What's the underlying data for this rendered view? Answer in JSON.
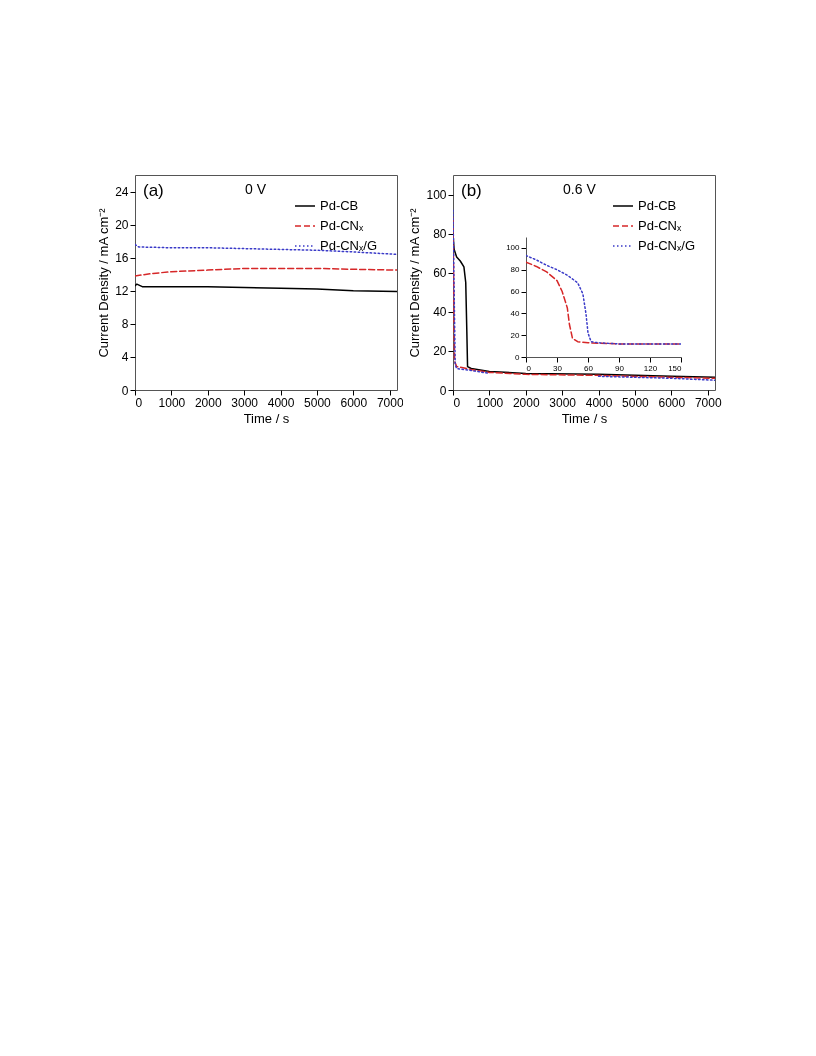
{
  "chart_data": [
    {
      "type": "line",
      "xlabel": "Time / s",
      "ylabel": "Current Density / mA cm⁻²",
      "annotations": [
        "(a)",
        "0 V"
      ],
      "xlim": [
        0,
        7200
      ],
      "xticks": [
        0,
        1000,
        2000,
        3000,
        4000,
        5000,
        6000,
        7000
      ],
      "ylim": [
        0,
        26
      ],
      "yticks": [
        0,
        4,
        8,
        12,
        16,
        20,
        24
      ],
      "legend": "top right",
      "grid": false,
      "series": [
        {
          "name": "Pd-CB",
          "color": "#000000",
          "line_style": "solid",
          "x": [
            0,
            50,
            200,
            1000,
            2000,
            3000,
            4000,
            5000,
            6000,
            7200
          ],
          "values": [
            12.6,
            12.8,
            12.5,
            12.5,
            12.5,
            12.4,
            12.3,
            12.2,
            12.0,
            11.9
          ]
        },
        {
          "name": "Pd-CNₓ",
          "color": "#d62728",
          "line_style": "dashed",
          "x": [
            0,
            500,
            1000,
            2000,
            3000,
            4000,
            5000,
            6000,
            7200
          ],
          "values": [
            13.8,
            14.1,
            14.3,
            14.5,
            14.7,
            14.7,
            14.7,
            14.6,
            14.5
          ]
        },
        {
          "name": "Pd-CNₓ/G",
          "color": "#3a3ac8",
          "line_style": "dotted",
          "x": [
            0,
            100,
            1000,
            2000,
            3000,
            4000,
            5000,
            6000,
            7200
          ],
          "values": [
            17.6,
            17.3,
            17.2,
            17.2,
            17.1,
            17.0,
            16.9,
            16.7,
            16.4
          ]
        }
      ]
    },
    {
      "type": "line",
      "xlabel": "Time / s",
      "ylabel": "Current Density / mA cm⁻²",
      "annotations": [
        "(b)",
        "0.6 V"
      ],
      "xlim": [
        0,
        7200
      ],
      "xticks": [
        0,
        1000,
        2000,
        3000,
        4000,
        5000,
        6000,
        7000
      ],
      "ylim": [
        0,
        110
      ],
      "yticks": [
        0,
        20,
        40,
        60,
        80,
        100
      ],
      "legend": "top right",
      "grid": false,
      "series": [
        {
          "name": "Pd-CB",
          "color": "#000000",
          "line_style": "solid",
          "x": [
            0,
            30,
            100,
            200,
            300,
            350,
            380,
            400,
            500,
            1000,
            2000,
            4000,
            6000,
            7200
          ],
          "values": [
            80,
            72,
            68,
            66,
            63,
            55,
            30,
            12,
            11,
            9.5,
            8.5,
            8,
            7,
            6.5
          ]
        },
        {
          "name": "Pd-CNₓ",
          "color": "#d62728",
          "line_style": "dashed",
          "x": [
            0,
            40,
            100,
            500,
            1000,
            2000,
            4000,
            6000,
            7200
          ],
          "values": [
            88,
            15,
            12,
            10.5,
            9,
            8,
            7.5,
            6.5,
            6
          ]
        },
        {
          "name": "Pd-CNₓ/G",
          "color": "#3a3ac8",
          "line_style": "dotted",
          "x": [
            0,
            60,
            100,
            500,
            1000,
            2000,
            4000,
            6000,
            7200
          ],
          "values": [
            92,
            13,
            11,
            10,
            8.5,
            null,
            7,
            6,
            5
          ]
        }
      ]
    },
    {
      "type": "line",
      "xlim": [
        0,
        150
      ],
      "xticks": [
        0,
        30,
        60,
        90,
        120,
        150
      ],
      "ylim": [
        0,
        110
      ],
      "yticks": [
        0,
        20,
        40,
        60,
        80,
        100
      ],
      "grid": false,
      "series": [
        {
          "color": "#d62728",
          "line_style": "dashed",
          "x": [
            0,
            10,
            20,
            30,
            35,
            40,
            42,
            45,
            50,
            60,
            90,
            150
          ],
          "values": [
            87,
            83,
            78,
            70,
            60,
            45,
            30,
            17,
            14,
            13,
            12,
            12
          ]
        },
        {
          "color": "#3a3ac8",
          "line_style": "dotted",
          "x": [
            0,
            10,
            20,
            30,
            40,
            50,
            55,
            58,
            60,
            63,
            70,
            90,
            150
          ],
          "values": [
            93,
            89,
            84,
            80,
            75,
            68,
            58,
            40,
            22,
            14,
            13,
            12,
            12
          ]
        }
      ]
    }
  ]
}
